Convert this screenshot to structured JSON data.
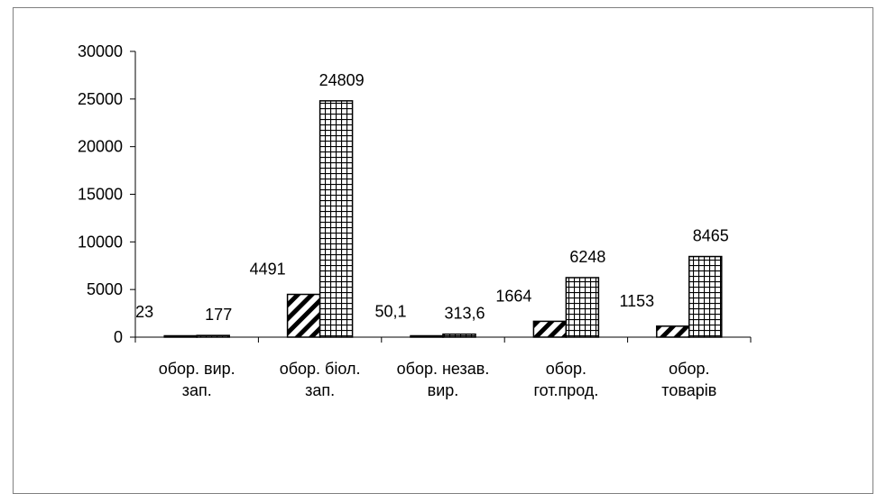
{
  "chart_data": {
    "type": "bar",
    "title": "",
    "xlabel": "",
    "ylabel": "",
    "ylim": [
      0,
      30000
    ],
    "yticks": [
      "0",
      "5000",
      "10000",
      "15000",
      "20000",
      "25000",
      "30000"
    ],
    "ytick_values": [
      0,
      5000,
      10000,
      15000,
      20000,
      25000,
      30000
    ],
    "categories": [
      [
        "обор. вир.",
        "зап."
      ],
      [
        "обор. біол.",
        "зап."
      ],
      [
        "обор. незав.",
        "вир."
      ],
      [
        "обор.",
        "гот.прод."
      ],
      [
        "обор.",
        "товарів"
      ]
    ],
    "series": [
      {
        "pattern": "diagonal-hatch",
        "values": [
          23,
          4491,
          50.1,
          1664,
          1153
        ],
        "labels": [
          "23",
          "4491",
          "50,1",
          "1664",
          "1153"
        ]
      },
      {
        "pattern": "grid-hatch",
        "values": [
          177,
          24809,
          313.6,
          6248,
          8465
        ],
        "labels": [
          "177",
          "24809",
          "313,6",
          "6248",
          "8465"
        ]
      }
    ],
    "grid": false,
    "legend": "none"
  }
}
